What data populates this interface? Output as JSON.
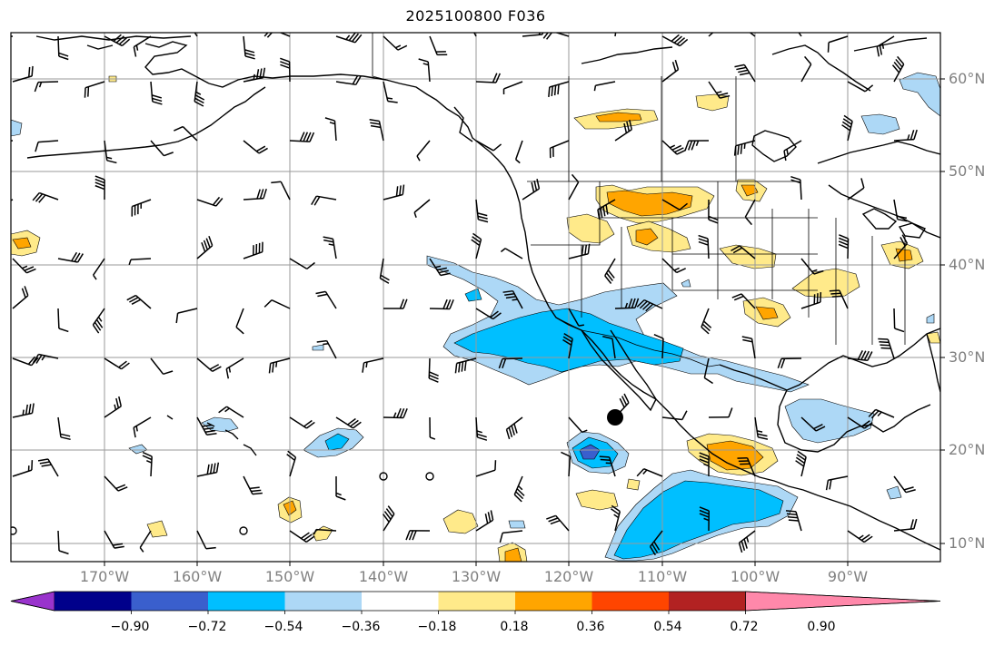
{
  "title": "2025100800 F036",
  "lat_labels": [
    "60°N",
    "50°N",
    "40°N",
    "30°N",
    "20°N",
    "10°N"
  ],
  "lon_labels": [
    "170°W",
    "160°W",
    "150°W",
    "140°W",
    "130°W",
    "120°W",
    "110°W",
    "100°W",
    "90°W"
  ],
  "colorbar": {
    "labels": [
      "−0.90",
      "−0.72",
      "−0.54",
      "−0.36",
      "−0.18",
      "0.18",
      "0.36",
      "0.54",
      "0.72",
      "0.90"
    ],
    "colors": [
      "#9933cc",
      "#00008b",
      "#3a5fcd",
      "#00bfff",
      "#add8f6",
      "#ffffff",
      "#ffea8a",
      "#ffa500",
      "#ff4500",
      "#b22222",
      "#ff88aa"
    ]
  },
  "fill_colors": {
    "neg_light": "#add8f6",
    "neg_mid": "#00bfff",
    "neg_strong": "#3a5fcd",
    "pos_light": "#ffea8a",
    "pos_mid": "#ffa500",
    "pos_strong": "#ff4500"
  },
  "marker_color": "#000000"
}
